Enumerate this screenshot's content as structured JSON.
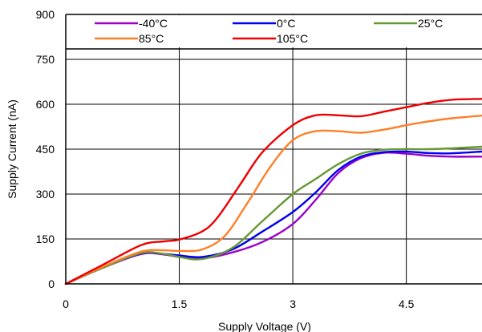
{
  "chart_data": {
    "type": "line",
    "title": "",
    "xlabel": "Supply Voltage (V)",
    "ylabel": "Supply Current (nA)",
    "xlim": [
      0,
      5.5
    ],
    "ylim": [
      0,
      900
    ],
    "xticks": [
      "0",
      "1.5",
      "3",
      "4.5"
    ],
    "yticks": [
      "0",
      "150",
      "300",
      "450",
      "600",
      "750",
      "900"
    ],
    "x_tick_values": [
      0,
      1.5,
      3,
      4.5
    ],
    "y_tick_values": [
      0,
      150,
      300,
      450,
      600,
      750,
      900
    ],
    "grid": true,
    "legend_position": "top",
    "series": [
      {
        "name": "-40°C",
        "color": "#9900cc",
        "points": [
          [
            0,
            0
          ],
          [
            0.5,
            55
          ],
          [
            1.0,
            100
          ],
          [
            1.3,
            98
          ],
          [
            1.5,
            90
          ],
          [
            1.8,
            85
          ],
          [
            2.2,
            105
          ],
          [
            2.6,
            140
          ],
          [
            3.0,
            200
          ],
          [
            3.3,
            280
          ],
          [
            3.6,
            370
          ],
          [
            3.9,
            420
          ],
          [
            4.2,
            438
          ],
          [
            4.5,
            435
          ],
          [
            4.8,
            428
          ],
          [
            5.1,
            425
          ],
          [
            5.5,
            425
          ]
        ]
      },
      {
        "name": "0°C",
        "color": "#0000ee",
        "points": [
          [
            0,
            0
          ],
          [
            0.5,
            55
          ],
          [
            1.0,
            102
          ],
          [
            1.3,
            100
          ],
          [
            1.5,
            95
          ],
          [
            1.8,
            90
          ],
          [
            2.2,
            115
          ],
          [
            2.6,
            175
          ],
          [
            3.0,
            240
          ],
          [
            3.3,
            305
          ],
          [
            3.6,
            380
          ],
          [
            3.9,
            425
          ],
          [
            4.2,
            440
          ],
          [
            4.5,
            442
          ],
          [
            4.8,
            437
          ],
          [
            5.1,
            436
          ],
          [
            5.5,
            442
          ]
        ]
      },
      {
        "name": "25°C",
        "color": "#669933",
        "points": [
          [
            0,
            0
          ],
          [
            0.5,
            55
          ],
          [
            1.0,
            103
          ],
          [
            1.3,
            100
          ],
          [
            1.5,
            90
          ],
          [
            1.8,
            83
          ],
          [
            2.2,
            120
          ],
          [
            2.6,
            210
          ],
          [
            3.0,
            300
          ],
          [
            3.3,
            350
          ],
          [
            3.6,
            400
          ],
          [
            3.9,
            435
          ],
          [
            4.2,
            448
          ],
          [
            4.5,
            450
          ],
          [
            4.8,
            450
          ],
          [
            5.1,
            453
          ],
          [
            5.5,
            458
          ]
        ]
      },
      {
        "name": "85°C",
        "color": "#ff7f27",
        "points": [
          [
            0,
            0
          ],
          [
            0.5,
            58
          ],
          [
            1.0,
            108
          ],
          [
            1.3,
            112
          ],
          [
            1.5,
            110
          ],
          [
            1.8,
            115
          ],
          [
            2.1,
            160
          ],
          [
            2.4,
            270
          ],
          [
            2.7,
            390
          ],
          [
            3.0,
            480
          ],
          [
            3.3,
            510
          ],
          [
            3.6,
            510
          ],
          [
            3.9,
            505
          ],
          [
            4.2,
            515
          ],
          [
            4.5,
            530
          ],
          [
            4.8,
            543
          ],
          [
            5.1,
            553
          ],
          [
            5.5,
            562
          ]
        ]
      },
      {
        "name": "105°C",
        "color": "#ee0000",
        "points": [
          [
            0,
            0
          ],
          [
            0.5,
            65
          ],
          [
            1.0,
            130
          ],
          [
            1.3,
            142
          ],
          [
            1.5,
            148
          ],
          [
            1.8,
            175
          ],
          [
            2.0,
            220
          ],
          [
            2.3,
            330
          ],
          [
            2.6,
            440
          ],
          [
            3.0,
            530
          ],
          [
            3.3,
            563
          ],
          [
            3.6,
            563
          ],
          [
            3.9,
            560
          ],
          [
            4.2,
            575
          ],
          [
            4.5,
            590
          ],
          [
            4.8,
            605
          ],
          [
            5.1,
            615
          ],
          [
            5.5,
            618
          ]
        ]
      }
    ]
  }
}
